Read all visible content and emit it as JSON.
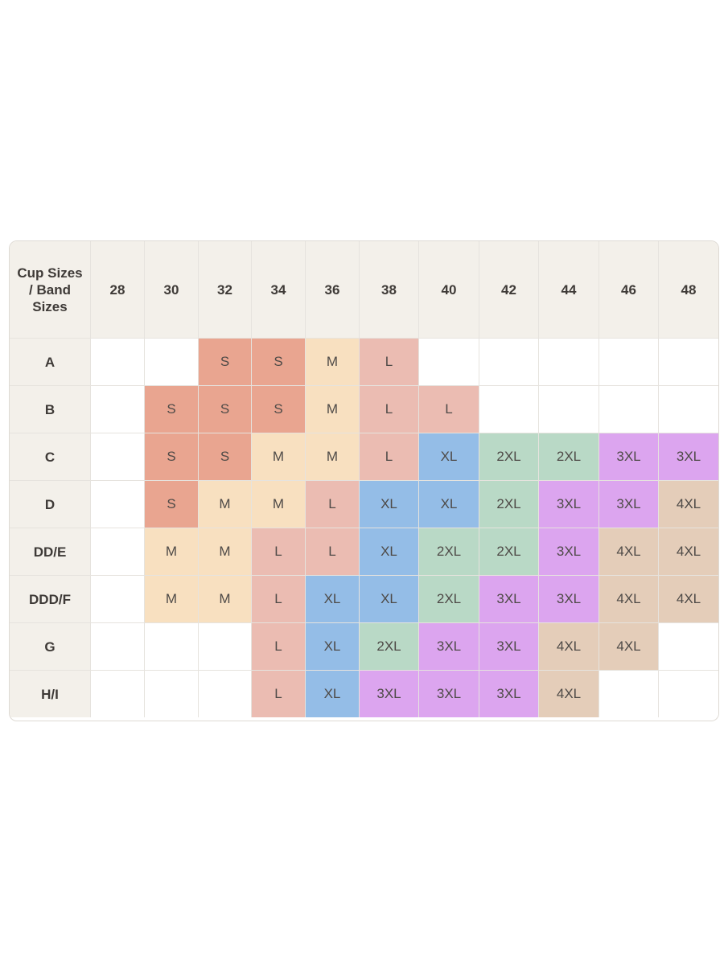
{
  "table": {
    "corner_label": "Cup Sizes / Band Sizes",
    "band_sizes": [
      "28",
      "30",
      "32",
      "34",
      "36",
      "38",
      "40",
      "42",
      "44",
      "46",
      "48"
    ],
    "colors": {
      "S": "#e9a590",
      "M": "#f8e0c0",
      "L": "#ebbcb2",
      "XL": "#94bde7",
      "2XL": "#b9d9c6",
      "3XL": "#dca5ef",
      "4XL": "#e4cdb9",
      "empty": "#ffffff"
    },
    "rows": [
      {
        "cup": "A",
        "cells": [
          "",
          "",
          "S",
          "S",
          "M",
          "L",
          "",
          "",
          "",
          "",
          ""
        ]
      },
      {
        "cup": "B",
        "cells": [
          "",
          "S",
          "S",
          "S",
          "M",
          "L",
          "L",
          "",
          "",
          "",
          ""
        ]
      },
      {
        "cup": "C",
        "cells": [
          "",
          "S",
          "S",
          "M",
          "M",
          "L",
          "XL",
          "2XL",
          "2XL",
          "3XL",
          "3XL"
        ]
      },
      {
        "cup": "D",
        "cells": [
          "",
          "S",
          "M",
          "M",
          "L",
          "XL",
          "XL",
          "2XL",
          "3XL",
          "3XL",
          "4XL"
        ]
      },
      {
        "cup": "DD/E",
        "cells": [
          "",
          "M",
          "M",
          "L",
          "L",
          "XL",
          "2XL",
          "2XL",
          "3XL",
          "4XL",
          "4XL"
        ]
      },
      {
        "cup": "DDD/F",
        "cells": [
          "",
          "M",
          "M",
          "L",
          "XL",
          "XL",
          "2XL",
          "3XL",
          "3XL",
          "4XL",
          "4XL"
        ]
      },
      {
        "cup": "G",
        "cells": [
          "",
          "",
          "",
          "L",
          "XL",
          "2XL",
          "3XL",
          "3XL",
          "4XL",
          "4XL",
          ""
        ]
      },
      {
        "cup": "H/I",
        "cells": [
          "",
          "",
          "",
          "L",
          "XL",
          "3XL",
          "3XL",
          "3XL",
          "4XL",
          "",
          ""
        ]
      }
    ]
  }
}
